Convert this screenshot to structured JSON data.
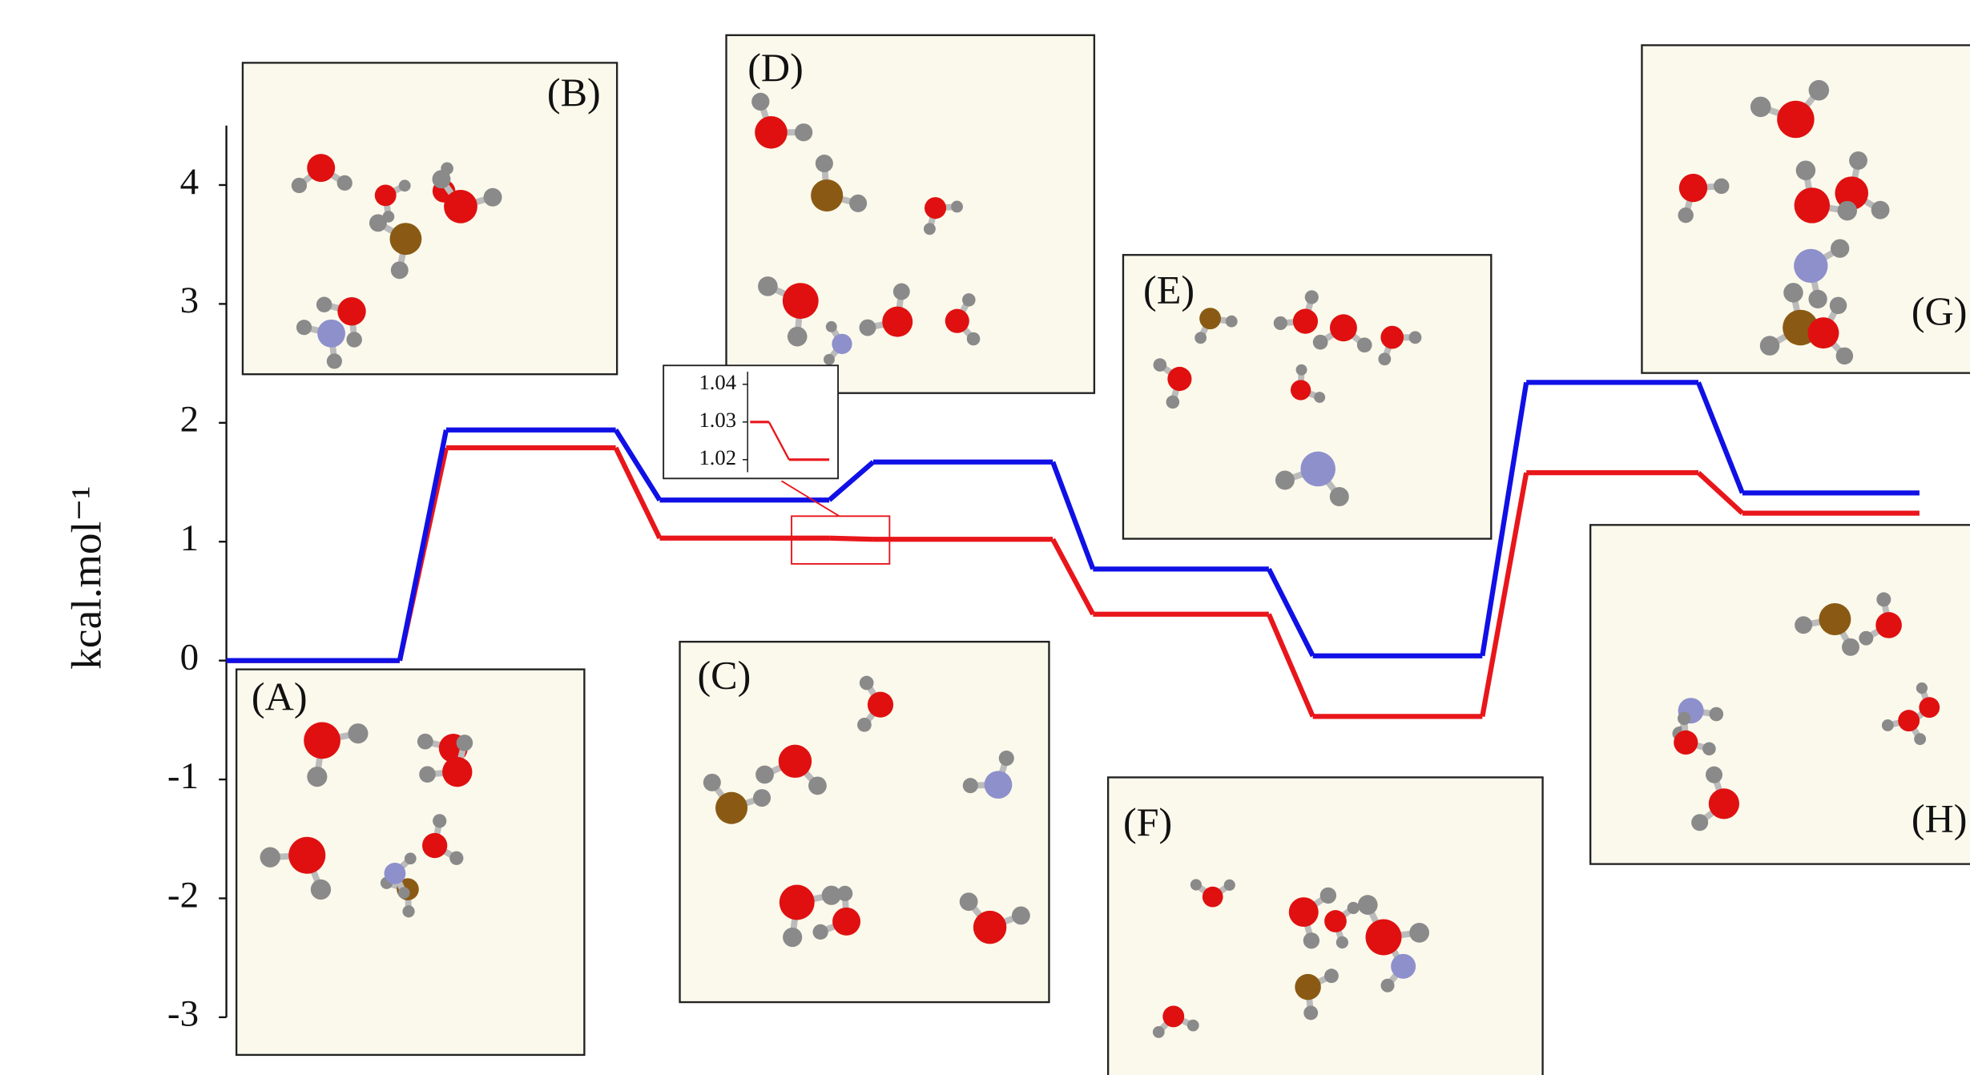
{
  "chart_data": {
    "type": "energy-profile",
    "y_label": "kcal.mol⁻¹",
    "categories": [
      "(A)",
      "(B)",
      "(C)",
      "(D)",
      "(E)",
      "(F)",
      "(G)",
      "(H)"
    ],
    "series": [
      {
        "color": "#e8161b",
        "values": [
          0,
          1.79,
          1.03,
          1.02,
          0.39,
          -0.47,
          1.58,
          1.24
        ]
      },
      {
        "color": "#1010e6",
        "values": [
          0,
          1.94,
          1.35,
          1.67,
          0.77,
          0.04,
          2.34,
          1.41
        ]
      }
    ],
    "ylim": [
      -3,
      4.5
    ],
    "yticks": [
      -3,
      -2,
      -1,
      0,
      1,
      2,
      3,
      4
    ],
    "inset": {
      "ylim": [
        1.015,
        1.045
      ],
      "yticks": [
        1.02,
        1.03,
        1.04
      ]
    }
  }
}
